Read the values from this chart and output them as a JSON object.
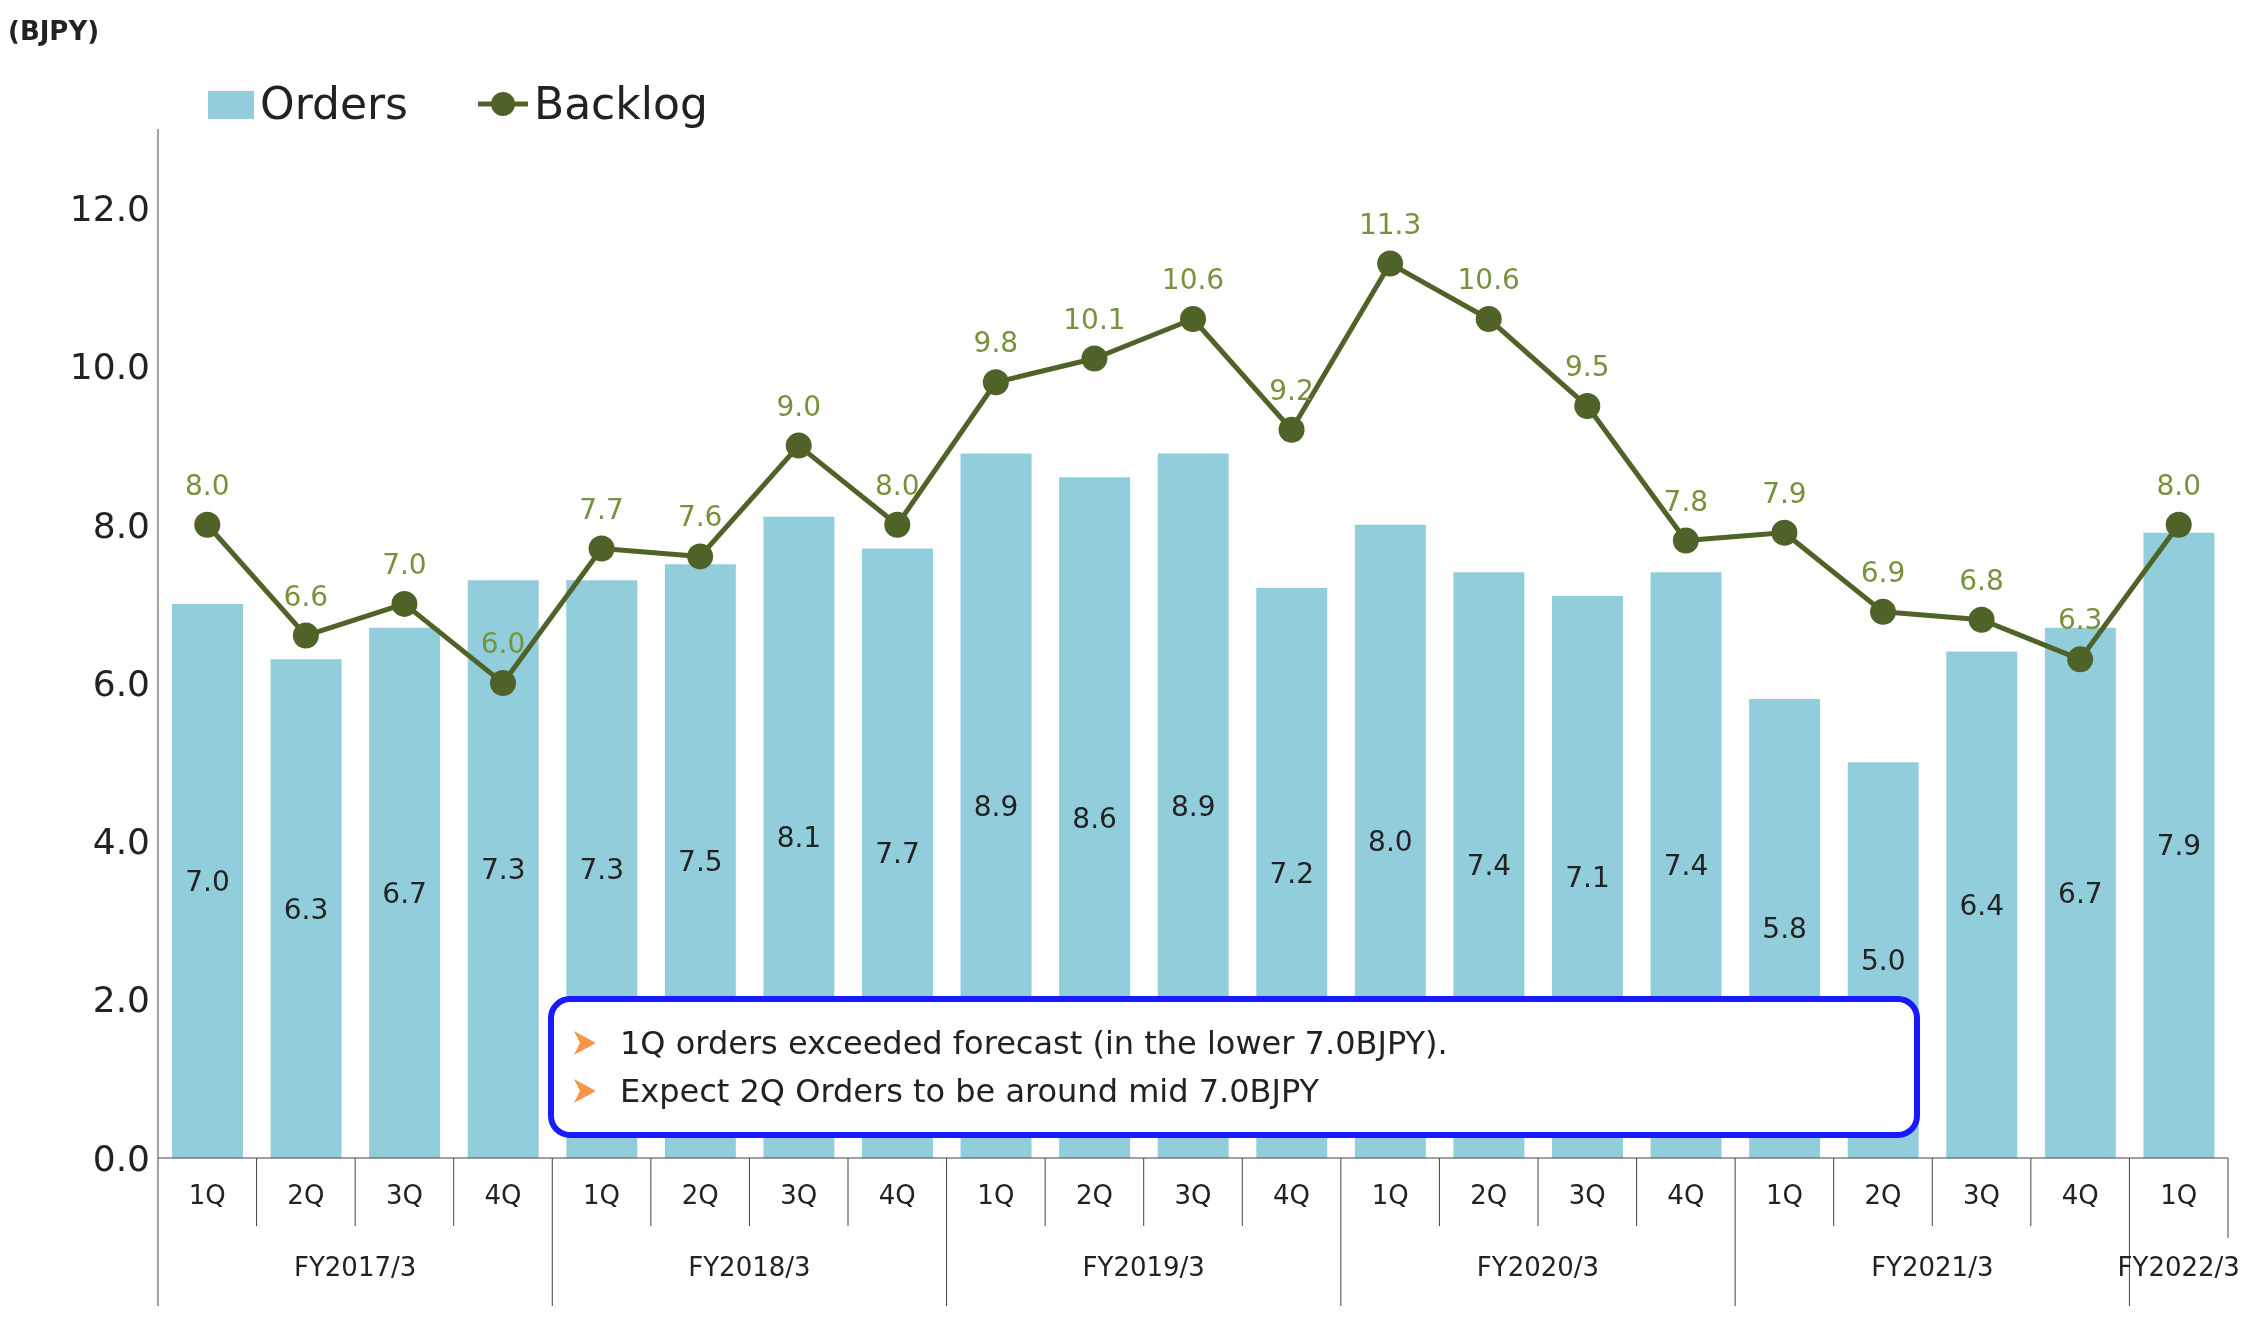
{
  "chart_data": {
    "type": "bar",
    "ylabel": "(BJPY)",
    "categories": [
      "1Q",
      "2Q",
      "3Q",
      "4Q",
      "1Q",
      "2Q",
      "3Q",
      "4Q",
      "1Q",
      "2Q",
      "3Q",
      "4Q",
      "1Q",
      "2Q",
      "3Q",
      "4Q",
      "1Q",
      "2Q",
      "3Q",
      "4Q",
      "1Q"
    ],
    "series": [
      {
        "name": "Orders",
        "color": "#92cddc",
        "values": [
          7.0,
          6.3,
          6.7,
          7.3,
          7.3,
          7.5,
          8.1,
          7.7,
          8.9,
          8.6,
          8.9,
          7.2,
          8.0,
          7.4,
          7.1,
          7.4,
          5.8,
          5.0,
          6.4,
          6.7,
          7.9
        ],
        "value_labels": [
          "7.0",
          "6.3",
          "6.7",
          "7.3",
          "7.3",
          "7.5",
          "8.1",
          "7.7",
          "8.9",
          "8.6",
          "8.9",
          "7.2",
          "8.0",
          "7.4",
          "7.1",
          "7.4",
          "5.8",
          "5.0",
          "6.4",
          "6.7",
          "7.9"
        ]
      },
      {
        "name": "Backlog",
        "type": "line",
        "color": "#4f6228",
        "values": [
          8.0,
          6.6,
          7.0,
          6.0,
          7.7,
          7.6,
          9.0,
          8.0,
          9.8,
          10.1,
          10.6,
          9.2,
          11.3,
          10.6,
          9.5,
          7.8,
          7.9,
          6.9,
          6.8,
          6.3,
          8.0
        ],
        "value_labels": [
          "8.0",
          "6.6",
          "7.0",
          "6.0",
          "7.7",
          "7.6",
          "9.0",
          "8.0",
          "9.8",
          "10.1",
          "10.6",
          "9.2",
          "11.3",
          "10.6",
          "9.5",
          "7.8",
          "7.9",
          "6.9",
          "6.8",
          "6.3",
          "8.0"
        ]
      }
    ],
    "ylim": [
      0,
      13
    ],
    "yticks": [
      {
        "value": 0,
        "label": "0.0"
      },
      {
        "value": 2,
        "label": "2.0"
      },
      {
        "value": 4,
        "label": "4.0"
      },
      {
        "value": 6,
        "label": "6.0"
      },
      {
        "value": 8,
        "label": "8.0"
      },
      {
        "value": 10,
        "label": "10.0"
      },
      {
        "value": 12,
        "label": "12.0"
      }
    ],
    "legend": "top left",
    "marker": "circle",
    "grid": false,
    "annotations": [
      "1Q orders exceeded forecast (in the lower 7.0BJPY).",
      "Expect 2Q Orders to be around mid 7.0BJPY",
      "FY2017/3",
      "FY2018/3",
      "FY2019/3",
      "FY2020/3",
      "FY2021/3",
      "FY2022/3"
    ]
  }
}
